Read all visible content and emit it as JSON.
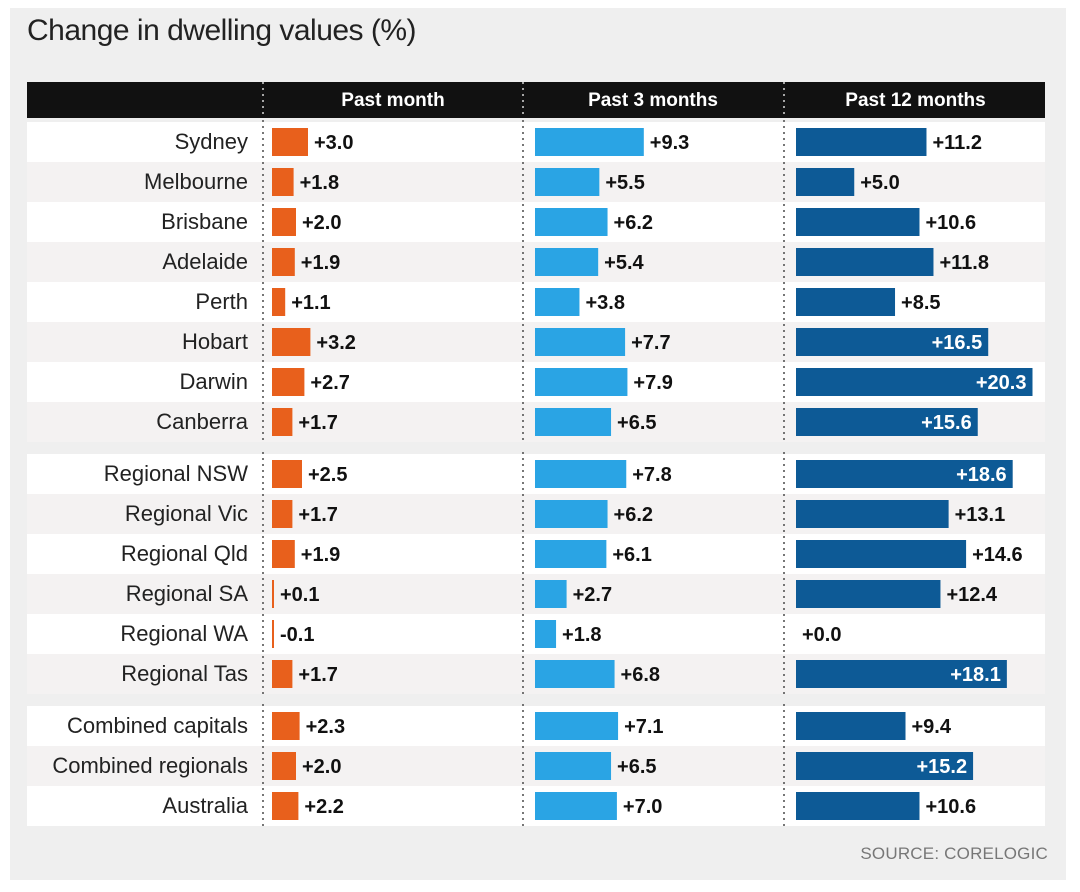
{
  "title": "Change in dwelling values (%)",
  "source": "SOURCE: CORELOGIC",
  "colors": {
    "past_month": "#e8601c",
    "past_3_months": "#2aa4e4",
    "past_12_months": "#0d5a96",
    "header_bg": "#111111",
    "row_bg_a": "#ffffff",
    "row_bg_b": "#f4f2f2"
  },
  "chart_data": {
    "type": "bar",
    "orientation": "horizontal",
    "columns": [
      "Past month",
      "Past 3 months",
      "Past 12 months"
    ],
    "groups": [
      {
        "rows": [
          {
            "label": "Sydney",
            "values": [
              3.0,
              9.3,
              11.2
            ],
            "labels": [
              "+3.0",
              "+9.3",
              "+11.2"
            ]
          },
          {
            "label": "Melbourne",
            "values": [
              1.8,
              5.5,
              5.0
            ],
            "labels": [
              "+1.8",
              "+5.5",
              "+5.0"
            ]
          },
          {
            "label": "Brisbane",
            "values": [
              2.0,
              6.2,
              10.6
            ],
            "labels": [
              "+2.0",
              "+6.2",
              "+10.6"
            ]
          },
          {
            "label": "Adelaide",
            "values": [
              1.9,
              5.4,
              11.8
            ],
            "labels": [
              "+1.9",
              "+5.4",
              "+11.8"
            ]
          },
          {
            "label": "Perth",
            "values": [
              1.1,
              3.8,
              8.5
            ],
            "labels": [
              "+1.1",
              "+3.8",
              "+8.5"
            ]
          },
          {
            "label": "Hobart",
            "values": [
              3.2,
              7.7,
              16.5
            ],
            "labels": [
              "+3.2",
              "+7.7",
              "+16.5"
            ]
          },
          {
            "label": "Darwin",
            "values": [
              2.7,
              7.9,
              20.3
            ],
            "labels": [
              "+2.7",
              "+7.9",
              "+20.3"
            ]
          },
          {
            "label": "Canberra",
            "values": [
              1.7,
              6.5,
              15.6
            ],
            "labels": [
              "+1.7",
              "+6.5",
              "+15.6"
            ]
          }
        ]
      },
      {
        "rows": [
          {
            "label": "Regional NSW",
            "values": [
              2.5,
              7.8,
              18.6
            ],
            "labels": [
              "+2.5",
              "+7.8",
              "+18.6"
            ]
          },
          {
            "label": "Regional Vic",
            "values": [
              1.7,
              6.2,
              13.1
            ],
            "labels": [
              "+1.7",
              "+6.2",
              "+13.1"
            ]
          },
          {
            "label": "Regional Qld",
            "values": [
              1.9,
              6.1,
              14.6
            ],
            "labels": [
              "+1.9",
              "+6.1",
              "+14.6"
            ]
          },
          {
            "label": "Regional SA",
            "values": [
              0.1,
              2.7,
              12.4
            ],
            "labels": [
              "+0.1",
              "+2.7",
              "+12.4"
            ]
          },
          {
            "label": "Regional WA",
            "values": [
              -0.1,
              1.8,
              0.0
            ],
            "labels": [
              "-0.1",
              "+1.8",
              "+0.0"
            ]
          },
          {
            "label": "Regional Tas",
            "values": [
              1.7,
              6.8,
              18.1
            ],
            "labels": [
              "+1.7",
              "+6.8",
              "+18.1"
            ]
          }
        ]
      },
      {
        "rows": [
          {
            "label": "Combined capitals",
            "values": [
              2.3,
              7.1,
              9.4
            ],
            "labels": [
              "+2.3",
              "+7.1",
              "+9.4"
            ]
          },
          {
            "label": "Combined regionals",
            "values": [
              2.0,
              6.5,
              15.2
            ],
            "labels": [
              "+2.0",
              "+6.5",
              "+15.2"
            ]
          },
          {
            "label": "Australia",
            "values": [
              2.2,
              7.0,
              10.6
            ],
            "labels": [
              "+2.2",
              "+7.0",
              "+10.6"
            ]
          }
        ]
      }
    ]
  }
}
